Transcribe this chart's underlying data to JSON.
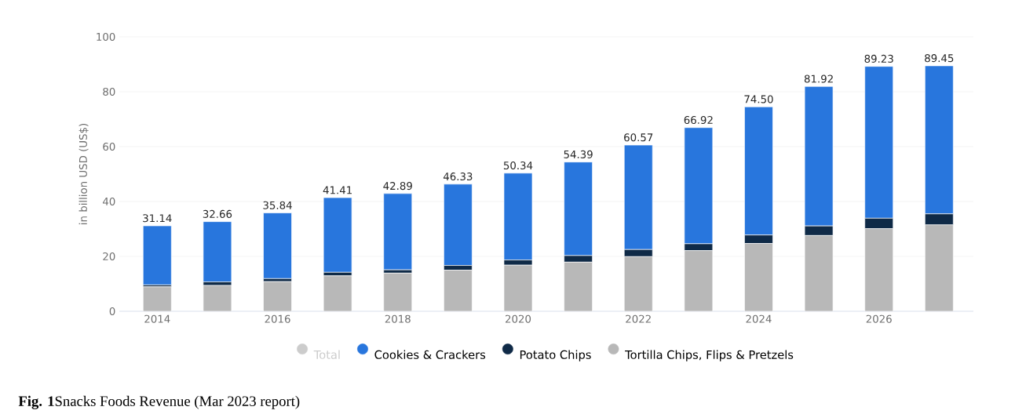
{
  "chart_data": {
    "type": "bar",
    "stacked": true,
    "categories": [
      "2014",
      null,
      "2016",
      null,
      "2018",
      null,
      "2020",
      null,
      "2022",
      null,
      "2024",
      null,
      "2026",
      null
    ],
    "series": [
      {
        "name": "Total",
        "color": "#cccccc",
        "values": [
          null,
          null,
          null,
          null,
          null,
          null,
          null,
          null,
          null,
          null,
          null,
          null,
          null,
          null
        ]
      },
      {
        "name": "Tortilla Chips, Flips & Pretzels",
        "color": "#b8b8b8",
        "values": [
          8.9,
          9.4,
          10.8,
          12.9,
          13.9,
          15.0,
          16.8,
          17.9,
          19.9,
          22.1,
          24.7,
          27.6,
          30.1,
          31.5
        ]
      },
      {
        "name": "Potato Chips",
        "color": "#0f2a47",
        "values": [
          0.7,
          1.3,
          1.1,
          1.3,
          1.2,
          1.7,
          1.9,
          2.4,
          2.6,
          2.5,
          3.1,
          3.5,
          3.8,
          4.0
        ]
      },
      {
        "name": "Cookies & Crackers",
        "color": "#2876dd",
        "values": [
          21.54,
          21.96,
          23.94,
          27.21,
          27.79,
          29.63,
          31.64,
          34.09,
          38.07,
          42.32,
          46.7,
          50.82,
          55.33,
          53.95
        ]
      }
    ],
    "totals": [
      "31.14",
      "32.66",
      "35.84",
      "41.41",
      "42.89",
      "46.33",
      "50.34",
      "54.39",
      "60.57",
      "66.92",
      "74.50",
      "81.92",
      "89.23",
      "89.45"
    ],
    "ylabel": "in billion USD (US$)",
    "ylim": [
      0,
      100
    ],
    "yticks": [
      0,
      20,
      40,
      60,
      80,
      100
    ],
    "grid": "y",
    "legend": "bottom",
    "annotations": [
      "**Fig. 1**Snacks Foods Revenue (Mar 2023 report)"
    ]
  }
}
